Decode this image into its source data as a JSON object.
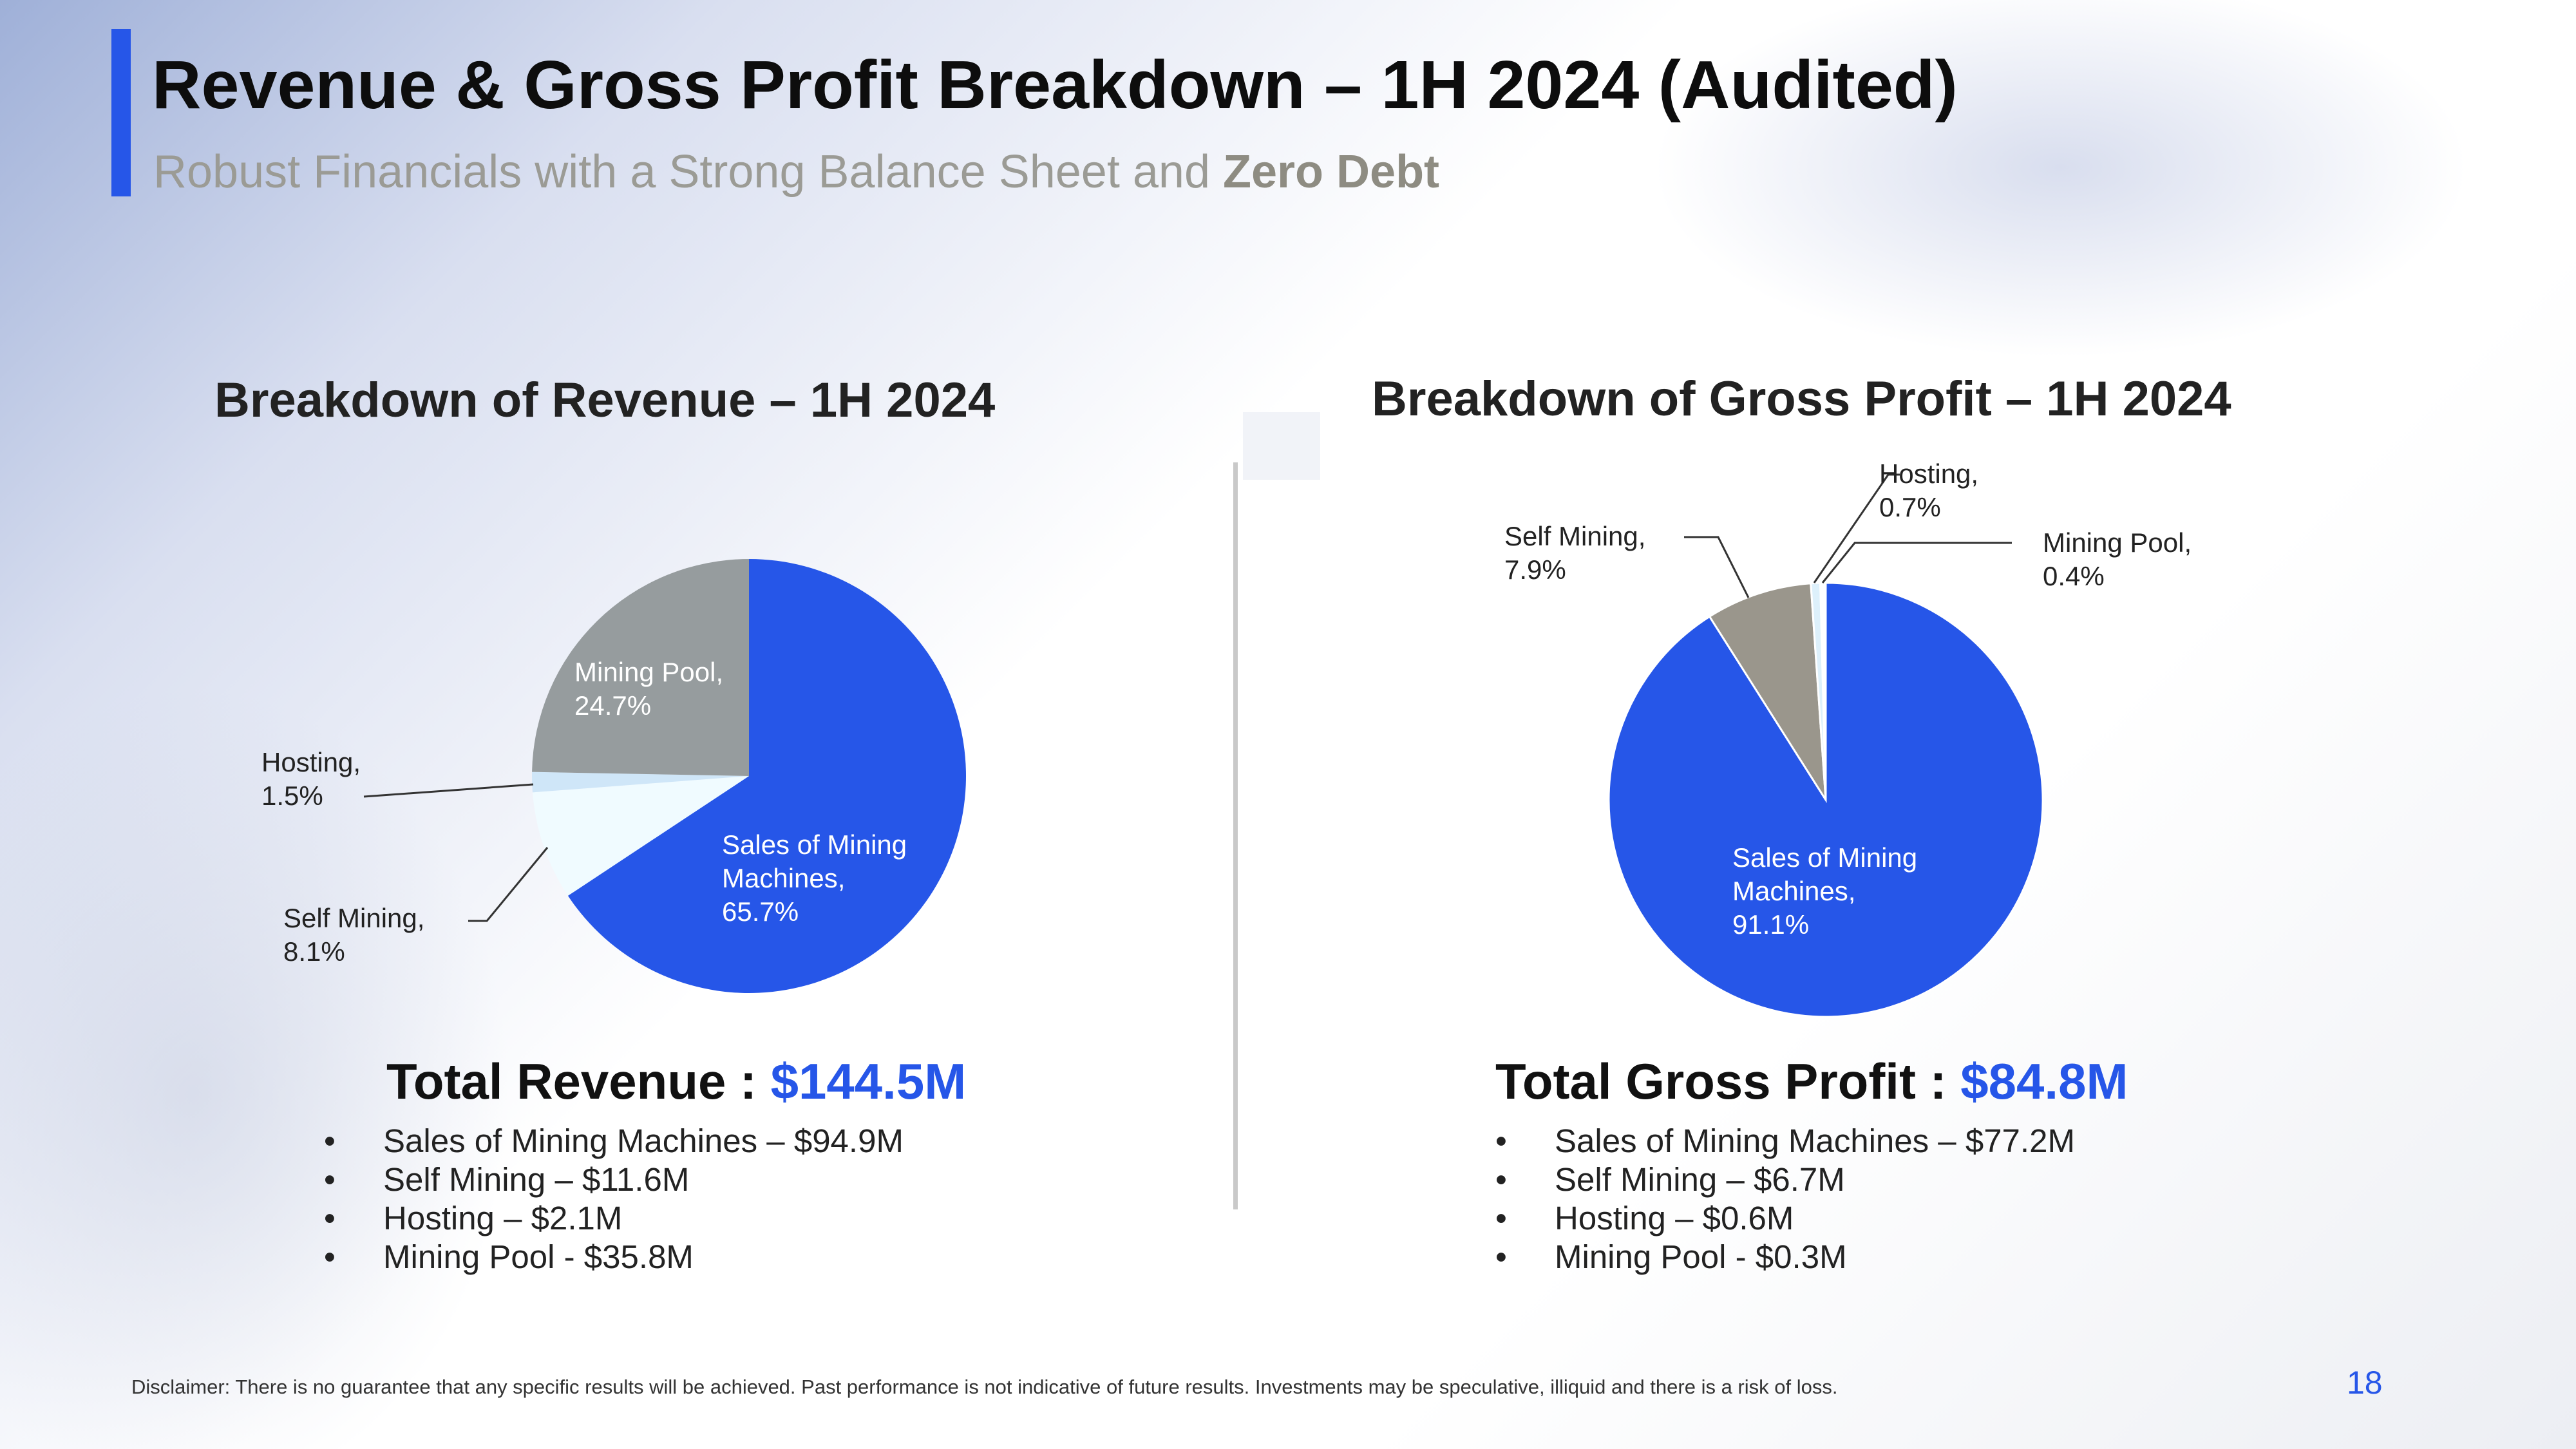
{
  "header": {
    "title": "Revenue & Gross Profit Breakdown – 1H 2024 (Audited)",
    "subtitle_prefix": "Robust Financials with a Strong Balance Sheet and ",
    "subtitle_bold": "Zero Debt"
  },
  "colors": {
    "accent_blue": "#2656e8",
    "mining_pool_gray": "#969c9e",
    "self_mining_light": "#f0fbff",
    "hosting_light_blue": "#cfe6f8",
    "gp_self_mining_taupe": "#9a968c",
    "gp_hosting": "#ddf0fb"
  },
  "chart_data": [
    {
      "type": "pie",
      "title": "Breakdown of Revenue – 1H 2024",
      "slices": [
        {
          "label": "Sales of Mining Machines,",
          "percent_label": "65.7%",
          "value": 65.7,
          "color": "#2656e8"
        },
        {
          "label": "Self Mining,",
          "percent_label": "8.1%",
          "value": 8.1,
          "color": "#f0fbff"
        },
        {
          "label": "Hosting,",
          "percent_label": "1.5%",
          "value": 1.5,
          "color": "#cfe6f8"
        },
        {
          "label": "Mining Pool,",
          "percent_label": "24.7%",
          "value": 24.7,
          "color": "#969c9e"
        }
      ]
    },
    {
      "type": "pie",
      "title": "Breakdown of Gross Profit – 1H 2024",
      "slices": [
        {
          "label": "Sales of Mining Machines,",
          "percent_label": "91.1%",
          "value": 91.1,
          "color": "#2656e8"
        },
        {
          "label": "Self Mining,",
          "percent_label": "7.9%",
          "value": 7.9,
          "color": "#9a968c"
        },
        {
          "label": "Hosting,",
          "percent_label": "0.7%",
          "value": 0.7,
          "color": "#ddf0fb"
        },
        {
          "label": "Mining Pool,",
          "percent_label": "0.4%",
          "value": 0.4,
          "color": "#ffffff"
        }
      ]
    }
  ],
  "revenue": {
    "total_label": "Total Revenue : ",
    "total_value": "$144.5M",
    "items": [
      "Sales of Mining Machines – $94.9M",
      "Self Mining – $11.6M",
      "Hosting – $2.1M",
      "Mining Pool - $35.8M"
    ]
  },
  "gross_profit": {
    "total_label": "Total Gross Profit : ",
    "total_value": "$84.8M",
    "items": [
      "Sales of Mining Machines – $77.2M",
      "Self Mining – $6.7M",
      "Hosting – $0.6M",
      "Mining Pool - $0.3M"
    ]
  },
  "footer": {
    "disclaimer": "Disclaimer: There is no guarantee that any specific results will be achieved. Past performance is not indicative of future results. Investments may be speculative, illiquid and there is a risk of loss.",
    "page_number": "18"
  }
}
